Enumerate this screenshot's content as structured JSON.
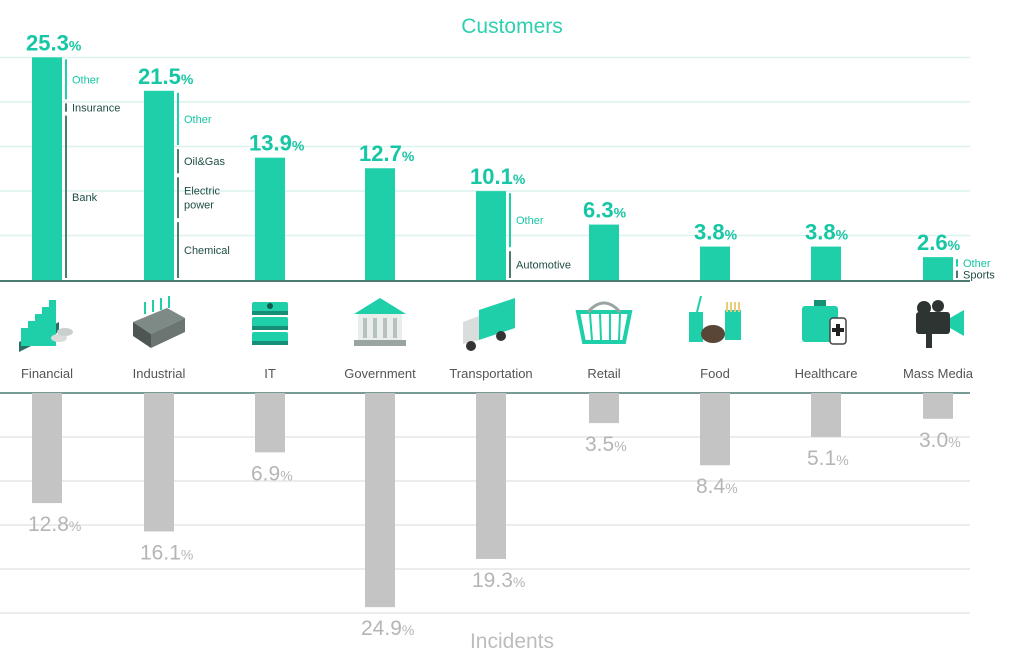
{
  "chart_data": {
    "type": "bar",
    "title_top": "Customers",
    "title_bottom": "Incidents",
    "categories": [
      "Financial",
      "Industrial",
      "IT",
      "Government",
      "Transportation",
      "Retail",
      "Food",
      "Healthcare",
      "Mass Media"
    ],
    "series": [
      {
        "name": "Customers",
        "values": [
          25.3,
          21.5,
          13.9,
          12.7,
          10.1,
          6.3,
          3.8,
          3.8,
          2.6
        ]
      },
      {
        "name": "Incidents",
        "values": [
          12.8,
          16.1,
          6.9,
          24.9,
          19.3,
          3.5,
          8.4,
          5.1,
          3.0
        ]
      }
    ],
    "value_labels_customers": [
      "25.3",
      "21.5",
      "13.9",
      "12.7",
      "10.1",
      "6.3",
      "3.8",
      "3.8",
      "2.6"
    ],
    "value_labels_incidents": [
      "12.8",
      "16.1",
      "6.9",
      "24.9",
      "19.3",
      "3.5",
      "8.4",
      "5.1",
      "3.0"
    ],
    "percent_sign": "%",
    "subsegments": [
      {
        "category": "Financial",
        "labels": [
          "Other",
          "Insurance",
          "Bank"
        ],
        "boundaries": [
          25.3,
          20.3,
          18.9,
          0
        ]
      },
      {
        "category": "Industrial",
        "labels": [
          "Other",
          "Oil&Gas",
          "Electric\npower",
          "Chemical"
        ],
        "boundaries": [
          21.5,
          15.1,
          11.9,
          6.8,
          0
        ]
      },
      {
        "category": "Transportation",
        "labels": [
          "Other",
          "Automotive"
        ],
        "boundaries": [
          10.1,
          3.5,
          0
        ]
      },
      {
        "category": "Mass Media",
        "labels": [
          "Other",
          "Sports"
        ],
        "boundaries": [
          2.6,
          1.3,
          0
        ]
      }
    ],
    "grid": true,
    "colors": {
      "customers": "#1ecfa9",
      "incidents": "#c4c4c4",
      "axis": "#4a7a70",
      "grid": "#dcf3ee",
      "grid_bottom": "#e6e6e6",
      "label_customers": "#17c6a4",
      "label_incidents": "#b5b5b5"
    }
  },
  "icons": [
    "financial-icon",
    "industrial-icon",
    "it-icon",
    "government-icon",
    "transportation-icon",
    "retail-icon",
    "food-icon",
    "healthcare-icon",
    "mass-media-icon"
  ]
}
